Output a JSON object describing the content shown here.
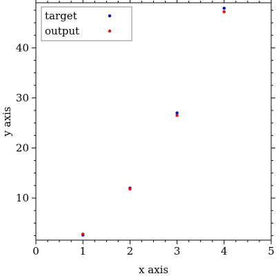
{
  "chart_data": {
    "type": "scatter",
    "title": "",
    "xlabel": "x axis",
    "ylabel": "y axis",
    "xlim": [
      0,
      5
    ],
    "ylim": [
      1.6,
      49.0
    ],
    "x_ticks": [
      0,
      1,
      2,
      3,
      4,
      5
    ],
    "y_ticks": [
      10,
      20,
      30,
      40
    ],
    "legend_position": "top-left",
    "series": [
      {
        "name": "target",
        "color": "#0000cc",
        "points": [
          [
            1,
            2.6
          ],
          [
            2,
            12.0
          ],
          [
            3,
            27.0
          ],
          [
            4,
            47.9
          ]
        ]
      },
      {
        "name": "output",
        "color": "#e01010",
        "points": [
          [
            1,
            2.8
          ],
          [
            2,
            11.8
          ],
          [
            3,
            26.5
          ],
          [
            4,
            47.2
          ]
        ]
      }
    ]
  }
}
